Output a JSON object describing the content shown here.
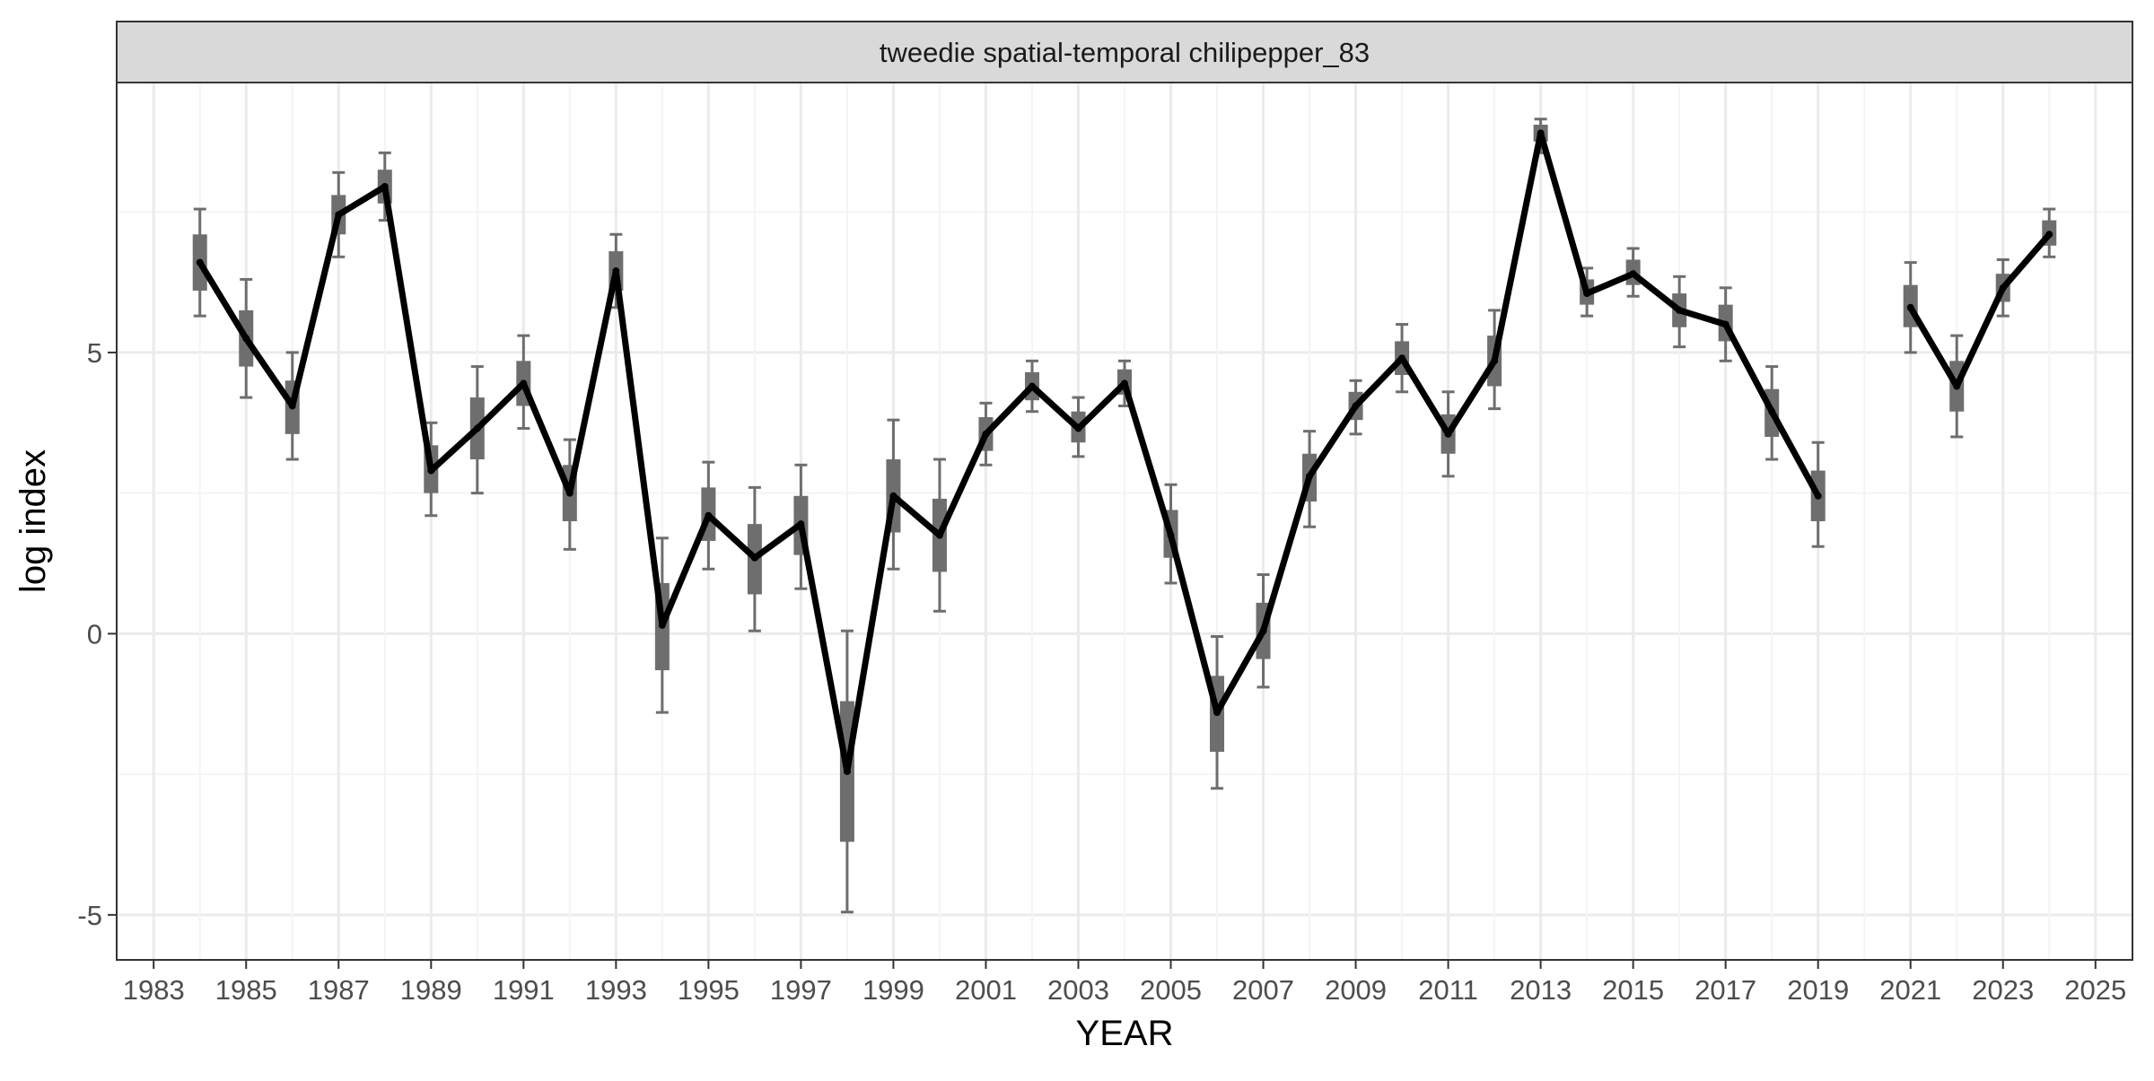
{
  "chart_data": {
    "type": "line",
    "panel_title": "tweedie spatial-temporal chilipepper_83",
    "xlabel": "YEAR",
    "ylabel": "log index",
    "xlim": [
      1982.2,
      2025.8
    ],
    "ylim": [
      -5.8,
      9.8
    ],
    "x_ticks": [
      "1983",
      "1985",
      "1987",
      "1989",
      "1991",
      "1993",
      "1995",
      "1997",
      "1999",
      "2001",
      "2003",
      "2005",
      "2007",
      "2009",
      "2011",
      "2013",
      "2015",
      "2017",
      "2019",
      "2021",
      "2023",
      "2025"
    ],
    "y_ticks": [
      "-5",
      "0",
      "5"
    ],
    "grid": true,
    "series": [
      {
        "points": [
          {
            "x": 1984,
            "y": 6.6,
            "se_lo": 6.1,
            "se_hi": 7.1,
            "ci_lo": 5.65,
            "ci_hi": 7.55
          },
          {
            "x": 1985,
            "y": 5.25,
            "se_lo": 4.75,
            "se_hi": 5.75,
            "ci_lo": 4.2,
            "ci_hi": 6.3
          },
          {
            "x": 1986,
            "y": 4.05,
            "se_lo": 3.55,
            "se_hi": 4.5,
            "ci_lo": 3.1,
            "ci_hi": 5.0
          },
          {
            "x": 1987,
            "y": 7.45,
            "se_lo": 7.1,
            "se_hi": 7.8,
            "ci_lo": 6.7,
            "ci_hi": 8.2
          },
          {
            "x": 1988,
            "y": 7.95,
            "se_lo": 7.65,
            "se_hi": 8.25,
            "ci_lo": 7.35,
            "ci_hi": 8.55
          },
          {
            "x": 1989,
            "y": 2.9,
            "se_lo": 2.5,
            "se_hi": 3.35,
            "ci_lo": 2.1,
            "ci_hi": 3.75
          },
          {
            "x": 1990,
            "y": 3.65,
            "se_lo": 3.1,
            "se_hi": 4.2,
            "ci_lo": 2.5,
            "ci_hi": 4.75
          },
          {
            "x": 1991,
            "y": 4.45,
            "se_lo": 4.05,
            "se_hi": 4.85,
            "ci_lo": 3.65,
            "ci_hi": 5.3
          },
          {
            "x": 1992,
            "y": 2.5,
            "se_lo": 2.0,
            "se_hi": 3.0,
            "ci_lo": 1.5,
            "ci_hi": 3.45
          },
          {
            "x": 1993,
            "y": 6.45,
            "se_lo": 6.1,
            "se_hi": 6.8,
            "ci_lo": 5.8,
            "ci_hi": 7.1
          },
          {
            "x": 1994,
            "y": 0.15,
            "se_lo": -0.65,
            "se_hi": 0.9,
            "ci_lo": -1.4,
            "ci_hi": 1.7
          },
          {
            "x": 1995,
            "y": 2.1,
            "se_lo": 1.65,
            "se_hi": 2.6,
            "ci_lo": 1.15,
            "ci_hi": 3.05
          },
          {
            "x": 1996,
            "y": 1.35,
            "se_lo": 0.7,
            "se_hi": 1.95,
            "ci_lo": 0.05,
            "ci_hi": 2.6
          },
          {
            "x": 1997,
            "y": 1.95,
            "se_lo": 1.4,
            "se_hi": 2.45,
            "ci_lo": 0.8,
            "ci_hi": 3.0
          },
          {
            "x": 1998,
            "y": -2.45,
            "se_lo": -3.7,
            "se_hi": -1.2,
            "ci_lo": -4.95,
            "ci_hi": 0.05
          },
          {
            "x": 1999,
            "y": 2.45,
            "se_lo": 1.8,
            "se_hi": 3.1,
            "ci_lo": 1.15,
            "ci_hi": 3.8
          },
          {
            "x": 2000,
            "y": 1.75,
            "se_lo": 1.1,
            "se_hi": 2.4,
            "ci_lo": 0.4,
            "ci_hi": 3.1
          },
          {
            "x": 2001,
            "y": 3.55,
            "se_lo": 3.25,
            "se_hi": 3.85,
            "ci_lo": 3.0,
            "ci_hi": 4.1
          },
          {
            "x": 2002,
            "y": 4.4,
            "se_lo": 4.15,
            "se_hi": 4.65,
            "ci_lo": 3.95,
            "ci_hi": 4.85
          },
          {
            "x": 2003,
            "y": 3.65,
            "se_lo": 3.4,
            "se_hi": 3.95,
            "ci_lo": 3.15,
            "ci_hi": 4.2
          },
          {
            "x": 2004,
            "y": 4.45,
            "se_lo": 4.25,
            "se_hi": 4.7,
            "ci_lo": 4.05,
            "ci_hi": 4.85
          },
          {
            "x": 2005,
            "y": 1.75,
            "se_lo": 1.35,
            "se_hi": 2.2,
            "ci_lo": 0.9,
            "ci_hi": 2.65
          },
          {
            "x": 2006,
            "y": -1.4,
            "se_lo": -2.1,
            "se_hi": -0.75,
            "ci_lo": -2.75,
            "ci_hi": -0.05
          },
          {
            "x": 2007,
            "y": 0.05,
            "se_lo": -0.45,
            "se_hi": 0.55,
            "ci_lo": -0.95,
            "ci_hi": 1.05
          },
          {
            "x": 2008,
            "y": 2.8,
            "se_lo": 2.35,
            "se_hi": 3.2,
            "ci_lo": 1.9,
            "ci_hi": 3.6
          },
          {
            "x": 2009,
            "y": 4.05,
            "se_lo": 3.8,
            "se_hi": 4.3,
            "ci_lo": 3.55,
            "ci_hi": 4.5
          },
          {
            "x": 2010,
            "y": 4.9,
            "se_lo": 4.6,
            "se_hi": 5.2,
            "ci_lo": 4.3,
            "ci_hi": 5.5
          },
          {
            "x": 2011,
            "y": 3.55,
            "se_lo": 3.2,
            "se_hi": 3.9,
            "ci_lo": 2.8,
            "ci_hi": 4.3
          },
          {
            "x": 2012,
            "y": 4.85,
            "se_lo": 4.4,
            "se_hi": 5.3,
            "ci_lo": 4.0,
            "ci_hi": 5.75
          },
          {
            "x": 2013,
            "y": 8.9,
            "se_lo": 8.75,
            "se_hi": 9.05,
            "ci_lo": 8.55,
            "ci_hi": 9.15
          },
          {
            "x": 2014,
            "y": 6.05,
            "se_lo": 5.85,
            "se_hi": 6.3,
            "ci_lo": 5.65,
            "ci_hi": 6.5
          },
          {
            "x": 2015,
            "y": 6.4,
            "se_lo": 6.2,
            "se_hi": 6.65,
            "ci_lo": 6.0,
            "ci_hi": 6.85
          },
          {
            "x": 2016,
            "y": 5.75,
            "se_lo": 5.45,
            "se_hi": 6.05,
            "ci_lo": 5.1,
            "ci_hi": 6.35
          },
          {
            "x": 2017,
            "y": 5.5,
            "se_lo": 5.2,
            "se_hi": 5.85,
            "ci_lo": 4.85,
            "ci_hi": 6.15
          },
          {
            "x": 2018,
            "y": 3.95,
            "se_lo": 3.5,
            "se_hi": 4.35,
            "ci_lo": 3.1,
            "ci_hi": 4.75
          },
          {
            "x": 2019,
            "y": 2.45,
            "se_lo": 2.0,
            "se_hi": 2.9,
            "ci_lo": 1.55,
            "ci_hi": 3.4
          },
          {
            "x": 2021,
            "y": 5.8,
            "se_lo": 5.45,
            "se_hi": 6.2,
            "ci_lo": 5.0,
            "ci_hi": 6.6
          },
          {
            "x": 2022,
            "y": 4.4,
            "se_lo": 3.95,
            "se_hi": 4.85,
            "ci_lo": 3.5,
            "ci_hi": 5.3
          },
          {
            "x": 2023,
            "y": 6.15,
            "se_lo": 5.9,
            "se_hi": 6.4,
            "ci_lo": 5.65,
            "ci_hi": 6.65
          },
          {
            "x": 2024,
            "y": 7.1,
            "se_lo": 6.9,
            "se_hi": 7.35,
            "ci_lo": 6.7,
            "ci_hi": 7.55
          }
        ]
      }
    ],
    "gaps_after": [
      2019
    ],
    "colors": {
      "line": "#000000",
      "interval": "#6e6e6e",
      "strip_bg": "#d9d9d9",
      "grid_major": "#ebebeb",
      "grid_minor": "#f4f4f4",
      "border": "#333333"
    }
  }
}
